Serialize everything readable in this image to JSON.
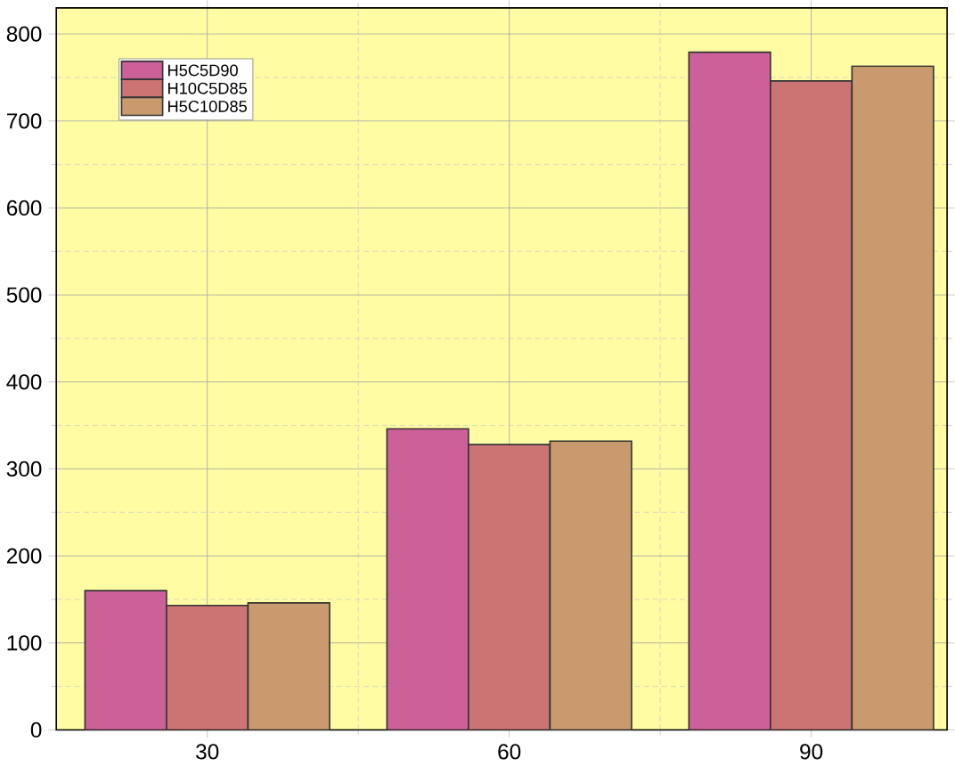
{
  "chart_data": {
    "type": "bar",
    "categories": [
      "30",
      "60",
      "90"
    ],
    "series": [
      {
        "name": "H5C5D90",
        "color": "#cc6199",
        "values": [
          160,
          346,
          779
        ]
      },
      {
        "name": "H10C5D85",
        "color": "#cc7373",
        "values": [
          143,
          328,
          746
        ]
      },
      {
        "name": "H5C10D85",
        "color": "#c89a6e",
        "values": [
          146,
          332,
          763
        ]
      }
    ],
    "ylim": [
      0,
      830
    ],
    "yticks": [
      0,
      100,
      200,
      300,
      400,
      500,
      600,
      700,
      800
    ],
    "grid": true,
    "legend": "top left"
  }
}
